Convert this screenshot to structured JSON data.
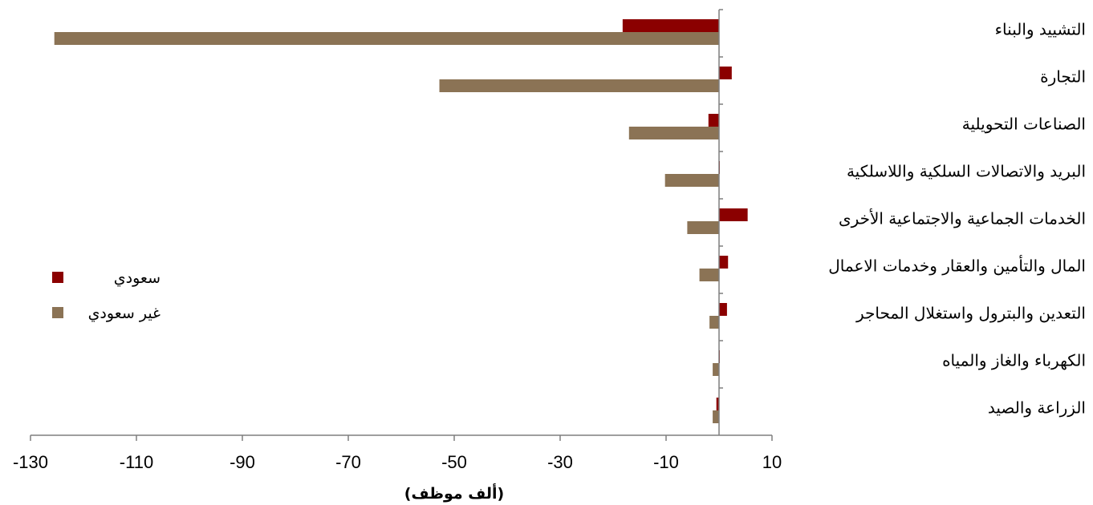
{
  "chart_data": {
    "type": "bar",
    "orientation": "horizontal",
    "categories": [
      "التشييد والبناء",
      "التجارة",
      "الصناعات التحويلية",
      "البريد والاتصالات السلكية واللاسلكية",
      "الخدمات الجماعية والاجتماعية الأخرى",
      "المال والتأمين والعقار وخدمات الاعمال",
      "التعدين والبترول واستغلال المحاجر",
      "الكهرباء والغاز والمياه",
      "الزراعة والصيد"
    ],
    "series": [
      {
        "name": "سعودي",
        "color": "#8b0000",
        "values": [
          -18.2,
          2.4,
          -2.0,
          0.1,
          5.4,
          1.7,
          1.5,
          0.1,
          -0.5
        ]
      },
      {
        "name": "غير سعودي",
        "color": "#8b7355",
        "values": [
          -125.5,
          -52.8,
          -17.0,
          -10.2,
          -6.0,
          -3.7,
          -1.8,
          -1.2,
          -1.2
        ]
      }
    ],
    "xlabel": "(ألف موظف)",
    "ylabel": "",
    "xlim": [
      -130,
      10
    ],
    "ticks": [
      "-130",
      "-110",
      "-90",
      "-70",
      "-50",
      "-30",
      "-10",
      "10"
    ],
    "grid": false,
    "legend_position": "left"
  }
}
